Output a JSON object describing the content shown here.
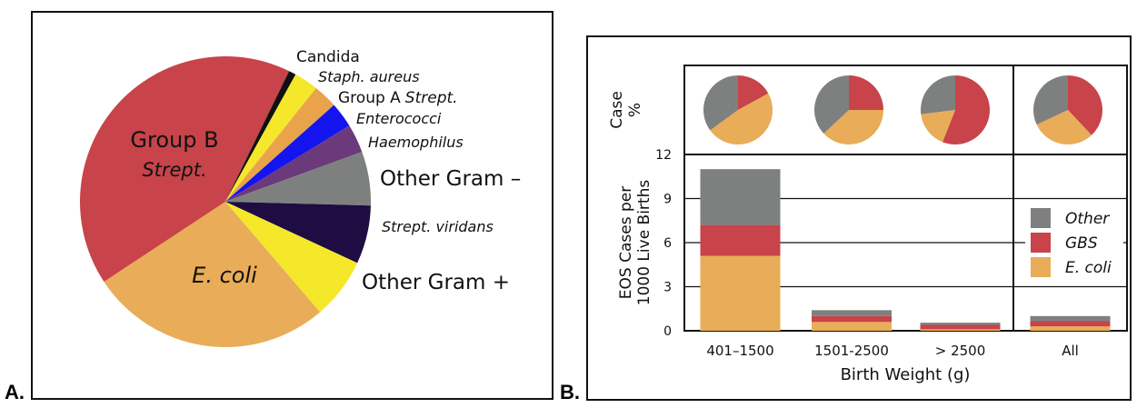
{
  "panels": {
    "a_letter": "A.",
    "b_letter": "B."
  },
  "chart_data": [
    {
      "type": "pie",
      "panel": "A",
      "slices": [
        {
          "label": "Group B Strept.",
          "label_line1": "Group B",
          "label_line2": "Strept.",
          "value": 41.5,
          "color": "#c8434a"
        },
        {
          "label": "Candida",
          "value": 0.8,
          "color": "#111111"
        },
        {
          "label": "Staph. aureus",
          "value": 2.7,
          "color": "#f5e72a"
        },
        {
          "label": "Group A Strept.",
          "label_line1": "Group A",
          "label_line2": "Strept.",
          "value": 2.7,
          "color": "#e9a34a"
        },
        {
          "label": "Enterococci",
          "value": 2.8,
          "color": "#1414f0"
        },
        {
          "label": "Haemophilus",
          "value": 3.2,
          "color": "#6b3a7a"
        },
        {
          "label": "Other Gram –",
          "value": 6.0,
          "color": "#7e8080"
        },
        {
          "label": "Strept. viridans",
          "value": 6.5,
          "color": "#1e0c42"
        },
        {
          "label": "Other Gram +",
          "value": 6.8,
          "color": "#f5e72a"
        },
        {
          "label": "E. coli",
          "value": 27.0,
          "color": "#e9ac58"
        }
      ]
    },
    {
      "type": "bar",
      "panel": "B",
      "stacked": true,
      "categories": [
        "401–1500",
        "1501-2500",
        "> 2500",
        "All"
      ],
      "xlabel": "Birth Weight (g)",
      "ylabel_line1": "EOS Cases per",
      "ylabel_line2": "1000 Live Births",
      "ylim": [
        0,
        12
      ],
      "yticks": [
        "0",
        "3",
        "6",
        "9",
        "12"
      ],
      "legend_position": "right",
      "series": [
        {
          "name": "E. coli",
          "color": "#e9ac58",
          "values": [
            5.1,
            0.6,
            0.1,
            0.3
          ]
        },
        {
          "name": "GBS",
          "color": "#c8434a",
          "values": [
            2.1,
            0.4,
            0.3,
            0.35
          ]
        },
        {
          "name": "Other",
          "color": "#7e8080",
          "values": [
            3.8,
            0.4,
            0.15,
            0.35
          ]
        }
      ],
      "legend_order": [
        "Other",
        "GBS",
        "E. coli"
      ]
    },
    {
      "type": "pie",
      "panel": "B-top",
      "row_label_line1": "Case",
      "row_label_line2": "%",
      "categories": [
        "401–1500",
        "1501-2500",
        "> 2500",
        "All"
      ],
      "pies": [
        {
          "Other": 35,
          "GBS": 17,
          "E. coli": 48
        },
        {
          "Other": 37,
          "GBS": 25,
          "E. coli": 38
        },
        {
          "Other": 27,
          "GBS": 56,
          "E. coli": 17
        },
        {
          "Other": 32,
          "GBS": 38,
          "E. coli": 30
        }
      ]
    }
  ]
}
